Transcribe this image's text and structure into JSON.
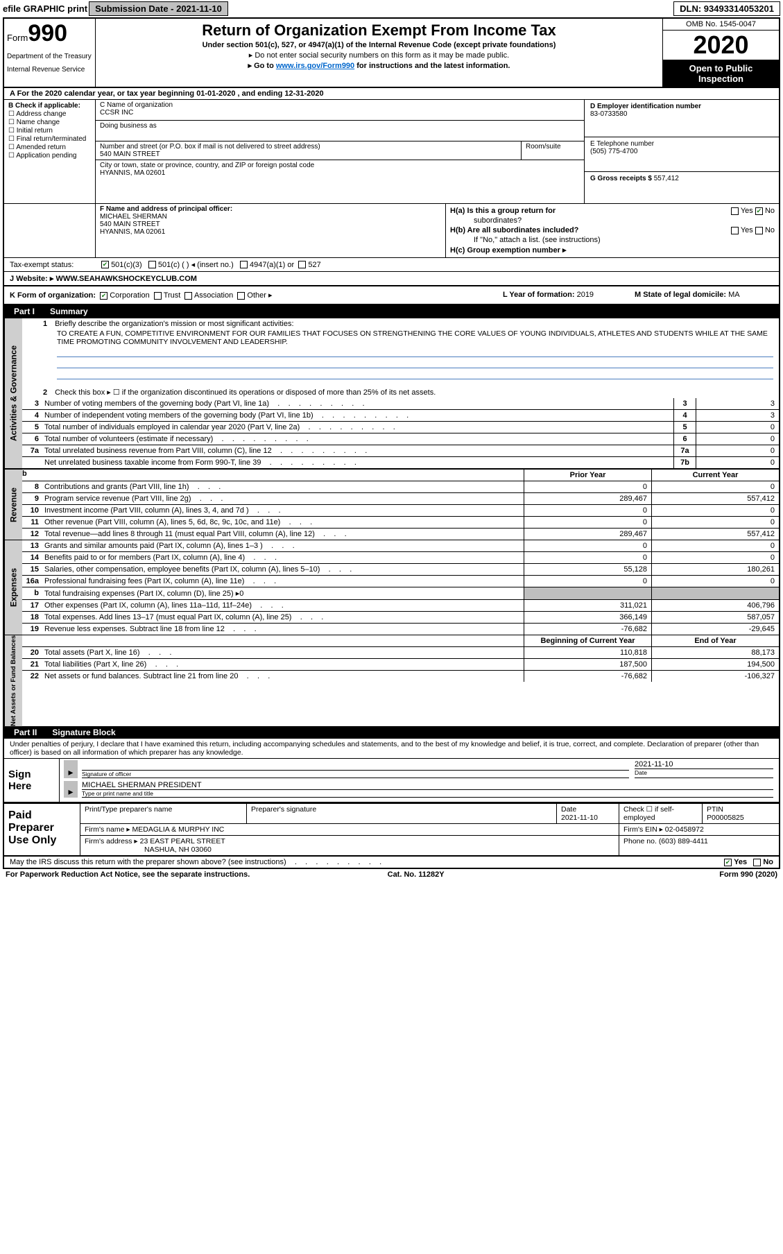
{
  "topbar": {
    "efile": "efile GRAPHIC print",
    "submission_label": "Submission Date - 2021-11-10",
    "dln": "DLN: 93493314053201"
  },
  "header": {
    "form_word": "Form",
    "form_num": "990",
    "dept": "Department of the Treasury",
    "irs": "Internal Revenue Service",
    "title": "Return of Organization Exempt From Income Tax",
    "sub1": "Under section 501(c), 527, or 4947(a)(1) of the Internal Revenue Code (except private foundations)",
    "sub2": "▸ Do not enter social security numbers on this form as it may be made public.",
    "sub3_pre": "▸ Go to ",
    "sub3_link": "www.irs.gov/Form990",
    "sub3_post": " for instructions and the latest information.",
    "omb": "OMB No. 1545-0047",
    "year": "2020",
    "open": "Open to Public Inspection"
  },
  "period": "A For the 2020 calendar year, or tax year beginning 01-01-2020    , and ending 12-31-2020",
  "checkB": {
    "label": "B Check if applicable:",
    "items": [
      "Address change",
      "Name change",
      "Initial return",
      "Final return/terminated",
      "Amended return",
      "Application pending"
    ]
  },
  "C": {
    "name_lbl": "C Name of organization",
    "name": "CCSR INC",
    "dba_lbl": "Doing business as",
    "addr_lbl": "Number and street (or P.O. box if mail is not delivered to street address)",
    "addr": "540 MAIN STREET",
    "room_lbl": "Room/suite",
    "city_lbl": "City or town, state or province, country, and ZIP or foreign postal code",
    "city": "HYANNIS, MA  02601"
  },
  "D": {
    "lbl": "D Employer identification number",
    "val": "83-0733580"
  },
  "E": {
    "lbl": "E Telephone number",
    "val": "(505) 775-4700"
  },
  "G": {
    "lbl": "G Gross receipts $",
    "val": "557,412"
  },
  "F": {
    "lbl": "F  Name and address of principal officer:",
    "name": "MICHAEL SHERMAN",
    "addr1": "540 MAIN STREET",
    "addr2": "HYANNIS, MA  02061"
  },
  "H": {
    "a_lbl": "H(a)  Is this a group return for",
    "a_lbl2": "subordinates?",
    "a_y": "Yes",
    "a_n": "No",
    "b_lbl": "H(b)  Are all subordinates included?",
    "b_y": "Yes",
    "b_n": "No",
    "b_note": "If \"No,\" attach a list. (see instructions)",
    "c_lbl": "H(c)  Group exemption number ▸"
  },
  "tax_status": {
    "lbl": "Tax-exempt status:",
    "o1": "501(c)(3)",
    "o2": "501(c) (   ) ◂ (insert no.)",
    "o3": "4947(a)(1) or",
    "o4": "527"
  },
  "J": {
    "lbl": "J    Website: ▸",
    "val": "WWW.SEAHAWKSHOCKEYCLUB.COM"
  },
  "K": {
    "lbl": "K Form of organization:",
    "o1": "Corporation",
    "o2": "Trust",
    "o3": "Association",
    "o4": "Other ▸"
  },
  "L": {
    "lbl": "L Year of formation:",
    "val": "2019"
  },
  "M": {
    "lbl": "M State of legal domicile:",
    "val": "MA"
  },
  "part1": {
    "num": "Part I",
    "title": "Summary"
  },
  "q1": {
    "num": "1",
    "label": "Briefly describe the organization's mission or most significant activities:",
    "mission": "TO CREATE A FUN, COMPETITIVE ENVIRONMENT FOR OUR FAMILIES THAT FOCUSES ON STRENGTHENING THE CORE VALUES OF YOUNG INDIVIDUALS, ATHLETES AND STUDENTS WHILE AT THE SAME TIME PROMOTING COMMUNITY INVOLVEMENT AND LEADERSHIP."
  },
  "q2": {
    "num": "2",
    "label": "Check this box ▸ ☐  if the organization discontinued its operations or disposed of more than 25% of its net assets."
  },
  "side_labels": {
    "act": "Activities & Governance",
    "rev": "Revenue",
    "exp": "Expenses",
    "net": "Net Assets or Fund Balances"
  },
  "gov_lines": [
    {
      "n": "3",
      "d": "Number of voting members of the governing body (Part VI, line 1a)",
      "box": "3",
      "v": "3"
    },
    {
      "n": "4",
      "d": "Number of independent voting members of the governing body (Part VI, line 1b)",
      "box": "4",
      "v": "3"
    },
    {
      "n": "5",
      "d": "Total number of individuals employed in calendar year 2020 (Part V, line 2a)",
      "box": "5",
      "v": "0"
    },
    {
      "n": "6",
      "d": "Total number of volunteers (estimate if necessary)",
      "box": "6",
      "v": "0"
    },
    {
      "n": "7a",
      "d": "Total unrelated business revenue from Part VIII, column (C), line 12",
      "box": "7a",
      "v": "0"
    },
    {
      "n": "",
      "d": "Net unrelated business taxable income from Form 990-T, line 39",
      "box": "7b",
      "v": "0"
    }
  ],
  "hdr2": {
    "b": "b",
    "py": "Prior Year",
    "cy": "Current Year"
  },
  "rev_lines": [
    {
      "n": "8",
      "d": "Contributions and grants (Part VIII, line 1h)",
      "py": "0",
      "cy": "0"
    },
    {
      "n": "9",
      "d": "Program service revenue (Part VIII, line 2g)",
      "py": "289,467",
      "cy": "557,412"
    },
    {
      "n": "10",
      "d": "Investment income (Part VIII, column (A), lines 3, 4, and 7d )",
      "py": "0",
      "cy": "0"
    },
    {
      "n": "11",
      "d": "Other revenue (Part VIII, column (A), lines 5, 6d, 8c, 9c, 10c, and 11e)",
      "py": "0",
      "cy": "0"
    },
    {
      "n": "12",
      "d": "Total revenue—add lines 8 through 11 (must equal Part VIII, column (A), line 12)",
      "py": "289,467",
      "cy": "557,412"
    }
  ],
  "exp_lines": [
    {
      "n": "13",
      "d": "Grants and similar amounts paid (Part IX, column (A), lines 1–3 )",
      "py": "0",
      "cy": "0"
    },
    {
      "n": "14",
      "d": "Benefits paid to or for members (Part IX, column (A), line 4)",
      "py": "0",
      "cy": "0"
    },
    {
      "n": "15",
      "d": "Salaries, other compensation, employee benefits (Part IX, column (A), lines 5–10)",
      "py": "55,128",
      "cy": "180,261"
    },
    {
      "n": "16a",
      "d": "Professional fundraising fees (Part IX, column (A), line 11e)",
      "py": "0",
      "cy": "0"
    },
    {
      "n": "b",
      "d": "Total fundraising expenses (Part IX, column (D), line 25) ▸0",
      "py": "",
      "cy": "",
      "dead": true
    },
    {
      "n": "17",
      "d": "Other expenses (Part IX, column (A), lines 11a–11d, 11f–24e)",
      "py": "311,021",
      "cy": "406,796"
    },
    {
      "n": "18",
      "d": "Total expenses. Add lines 13–17 (must equal Part IX, column (A), line 25)",
      "py": "366,149",
      "cy": "587,057"
    },
    {
      "n": "19",
      "d": "Revenue less expenses. Subtract line 18 from line 12",
      "py": "-76,682",
      "cy": "-29,645"
    }
  ],
  "hdr3": {
    "by": "Beginning of Current Year",
    "ey": "End of Year"
  },
  "net_lines": [
    {
      "n": "20",
      "d": "Total assets (Part X, line 16)",
      "py": "110,818",
      "cy": "88,173"
    },
    {
      "n": "21",
      "d": "Total liabilities (Part X, line 26)",
      "py": "187,500",
      "cy": "194,500"
    },
    {
      "n": "22",
      "d": "Net assets or fund balances. Subtract line 21 from line 20",
      "py": "-76,682",
      "cy": "-106,327"
    }
  ],
  "part2": {
    "num": "Part II",
    "title": "Signature Block"
  },
  "sig_intro": "Under penalties of perjury, I declare that I have examined this return, including accompanying schedules and statements, and to the best of my knowledge and belief, it is true, correct, and complete. Declaration of preparer (other than officer) is based on all information of which preparer has any knowledge.",
  "sig": {
    "here": "Sign Here",
    "sig_lbl": "Signature of officer",
    "date_lbl": "Date",
    "date": "2021-11-10",
    "name": "MICHAEL SHERMAN  PRESIDENT",
    "name_lbl": "Type or print name and title"
  },
  "paid": {
    "title": "Paid Preparer Use Only",
    "h1": "Print/Type preparer's name",
    "h2": "Preparer's signature",
    "h3": "Date",
    "date": "2021-11-10",
    "h4_pre": "Check ☐  if self-employed",
    "h5": "PTIN",
    "ptin": "P00005825",
    "firm_lbl": "Firm's name      ▸",
    "firm": "MEDAGLIA & MURPHY INC",
    "ein_lbl": "Firm's EIN ▸",
    "ein": "02-0458972",
    "addr_lbl": "Firm's address ▸",
    "addr1": "23 EAST PEARL STREET",
    "addr2": "NASHUA, NH  03060",
    "phone_lbl": "Phone no.",
    "phone": "(603) 889-4411"
  },
  "irs_q": "May the IRS discuss this return with the preparer shown above? (see instructions)",
  "irs_y": "Yes",
  "irs_n": "No",
  "footer": {
    "l": "For Paperwork Reduction Act Notice, see the separate instructions.",
    "m": "Cat. No. 11282Y",
    "r": "Form 990 (2020)"
  },
  "colors": {
    "link": "#0066cc",
    "line_blue": "#4a7dbf",
    "grey_bg": "#bfbfbf",
    "side_bg": "#cfcfcf",
    "check_green": "#1a7f1a"
  }
}
